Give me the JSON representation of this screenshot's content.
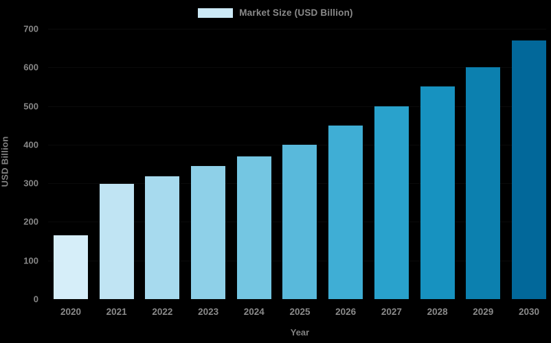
{
  "chart_data": {
    "type": "bar",
    "title": "Market Size (USD Billion)",
    "categories": [
      "2020",
      "2021",
      "2022",
      "2023",
      "2024",
      "2025",
      "2026",
      "2027",
      "2028",
      "2029",
      "2030"
    ],
    "values": [
      165,
      298,
      318,
      345,
      370,
      400,
      450,
      500,
      550,
      600,
      670
    ],
    "xlabel": "Year",
    "ylabel": "USD Billion",
    "ylim": [
      0,
      700
    ],
    "yticks": [
      0,
      100,
      200,
      300,
      400,
      500,
      600,
      700
    ],
    "grid": false,
    "legend_position": "top-center",
    "background_color": "#000000",
    "text_color": "#878787",
    "bar_colors": [
      "#d6eef9",
      "#c0e4f3",
      "#a7daee",
      "#8ed0e8",
      "#74c6e2",
      "#59b9db",
      "#3faed5",
      "#29a2cc",
      "#1792c0",
      "#0c80af",
      "#02689a"
    ],
    "legend_swatch_color": "#cce9f6"
  },
  "legend": {
    "label": "Market Size (USD Billion)"
  },
  "axes": {
    "x_title": "Year",
    "y_title": "USD Billion"
  }
}
